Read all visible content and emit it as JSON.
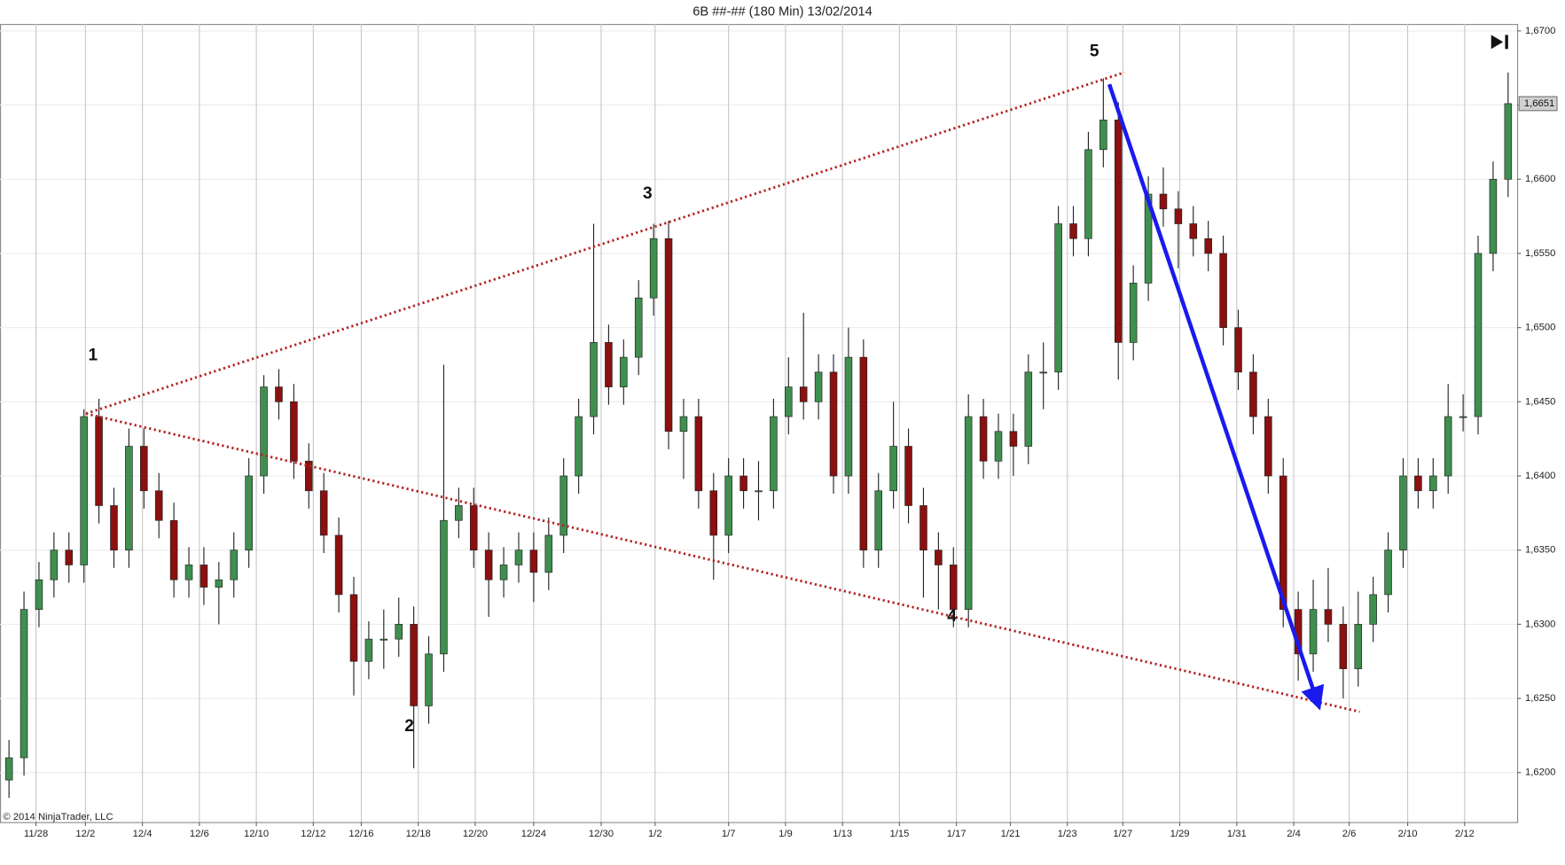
{
  "chart_data": {
    "type": "candlestick",
    "title": "6B ##-## (180 Min)  13/02/2014",
    "copyright": "© 2014 NinjaTrader, LLC",
    "up_color": "#3f8f4f",
    "down_color": "#8b1010",
    "open": [
      1.6195,
      1.621,
      1.631,
      1.633,
      1.635,
      1.634,
      1.644,
      1.638,
      1.635,
      1.642,
      1.639,
      1.637,
      1.633,
      1.634,
      1.6325,
      1.633,
      1.635,
      1.64,
      1.646,
      1.645,
      1.641,
      1.639,
      1.636,
      1.632,
      1.6275,
      1.629,
      1.629,
      1.63,
      1.6245,
      1.628,
      1.637,
      1.638,
      1.635,
      1.633,
      1.634,
      1.635,
      1.6335,
      1.636,
      1.64,
      1.644,
      1.649,
      1.646,
      1.648,
      1.652,
      1.656,
      1.643,
      1.644,
      1.639,
      1.636,
      1.64,
      1.639,
      1.639,
      1.644,
      1.646,
      1.645,
      1.647,
      1.64,
      1.648,
      1.635,
      1.639,
      1.642,
      1.638,
      1.635,
      1.634,
      1.631,
      1.644,
      1.641,
      1.643,
      1.642,
      1.647,
      1.647,
      1.657,
      1.656,
      1.662,
      1.664,
      1.649,
      1.653,
      1.659,
      1.658,
      1.657,
      1.656,
      1.655,
      1.65,
      1.647,
      1.644,
      1.64,
      1.631,
      1.628,
      1.631,
      1.63,
      1.627,
      1.63,
      1.632,
      1.635,
      1.64,
      1.639,
      1.64,
      1.644,
      1.644,
      1.655,
      1.66
    ],
    "high": [
      1.6222,
      1.6322,
      1.6342,
      1.6362,
      1.6362,
      1.6445,
      1.6452,
      1.6392,
      1.6432,
      1.6432,
      1.6402,
      1.6382,
      1.6352,
      1.6352,
      1.6342,
      1.6362,
      1.6412,
      1.6468,
      1.6472,
      1.6462,
      1.6422,
      1.6402,
      1.6372,
      1.6332,
      1.6302,
      1.631,
      1.6318,
      1.6312,
      1.6292,
      1.6475,
      1.6392,
      1.6392,
      1.6362,
      1.6352,
      1.6362,
      1.6362,
      1.6372,
      1.6412,
      1.6452,
      1.657,
      1.6502,
      1.6492,
      1.6532,
      1.657,
      1.6572,
      1.6452,
      1.6452,
      1.6402,
      1.6412,
      1.6412,
      1.641,
      1.6452,
      1.648,
      1.651,
      1.6482,
      1.6482,
      1.65,
      1.6492,
      1.6402,
      1.645,
      1.6432,
      1.6392,
      1.6362,
      1.6352,
      1.6455,
      1.6452,
      1.6442,
      1.6442,
      1.6482,
      1.649,
      1.6582,
      1.6582,
      1.6632,
      1.6668,
      1.6652,
      1.6542,
      1.6602,
      1.6608,
      1.6592,
      1.6582,
      1.6572,
      1.6562,
      1.6512,
      1.6482,
      1.6452,
      1.6412,
      1.6322,
      1.633,
      1.6338,
      1.6312,
      1.6322,
      1.6332,
      1.6362,
      1.6412,
      1.6412,
      1.6412,
      1.6462,
      1.6455,
      1.6562,
      1.6612,
      1.6672
    ],
    "low": [
      1.6183,
      1.6198,
      1.6298,
      1.6318,
      1.6328,
      1.6328,
      1.6368,
      1.6338,
      1.6338,
      1.6378,
      1.6358,
      1.6318,
      1.6318,
      1.6313,
      1.63,
      1.6318,
      1.6338,
      1.6388,
      1.6438,
      1.6398,
      1.6378,
      1.6348,
      1.6308,
      1.6252,
      1.6263,
      1.627,
      1.6278,
      1.6203,
      1.6233,
      1.6268,
      1.6358,
      1.6338,
      1.6305,
      1.6318,
      1.6328,
      1.6315,
      1.6323,
      1.6348,
      1.6388,
      1.6428,
      1.6448,
      1.6448,
      1.6468,
      1.6508,
      1.6418,
      1.6398,
      1.6378,
      1.633,
      1.6348,
      1.6378,
      1.637,
      1.6378,
      1.6428,
      1.6438,
      1.6438,
      1.6388,
      1.6388,
      1.6338,
      1.6338,
      1.6378,
      1.6368,
      1.6318,
      1.631,
      1.6298,
      1.6298,
      1.6398,
      1.6398,
      1.64,
      1.6408,
      1.6445,
      1.6458,
      1.6548,
      1.6548,
      1.6608,
      1.6465,
      1.6478,
      1.6518,
      1.6568,
      1.654,
      1.6548,
      1.6538,
      1.6488,
      1.6458,
      1.6428,
      1.6388,
      1.6298,
      1.6262,
      1.6268,
      1.6288,
      1.625,
      1.6258,
      1.6288,
      1.6308,
      1.6338,
      1.6378,
      1.6378,
      1.6388,
      1.643,
      1.6428,
      1.6538,
      1.6588
    ],
    "close": [
      1.621,
      1.631,
      1.633,
      1.635,
      1.634,
      1.644,
      1.638,
      1.635,
      1.642,
      1.639,
      1.637,
      1.633,
      1.634,
      1.6325,
      1.633,
      1.635,
      1.64,
      1.646,
      1.645,
      1.641,
      1.639,
      1.636,
      1.632,
      1.6275,
      1.629,
      1.629,
      1.63,
      1.6245,
      1.628,
      1.637,
      1.638,
      1.635,
      1.633,
      1.634,
      1.635,
      1.6335,
      1.636,
      1.64,
      1.644,
      1.649,
      1.646,
      1.648,
      1.652,
      1.656,
      1.643,
      1.644,
      1.639,
      1.636,
      1.64,
      1.639,
      1.639,
      1.644,
      1.646,
      1.645,
      1.647,
      1.64,
      1.648,
      1.635,
      1.639,
      1.642,
      1.638,
      1.635,
      1.634,
      1.631,
      1.644,
      1.641,
      1.643,
      1.642,
      1.647,
      1.647,
      1.657,
      1.656,
      1.662,
      1.664,
      1.649,
      1.653,
      1.659,
      1.658,
      1.657,
      1.656,
      1.655,
      1.65,
      1.647,
      1.644,
      1.64,
      1.631,
      1.628,
      1.631,
      1.63,
      1.627,
      1.63,
      1.632,
      1.635,
      1.64,
      1.639,
      1.64,
      1.644,
      1.644,
      1.655,
      1.66,
      1.6651
    ],
    "xlim": [
      -0.6,
      100.6
    ],
    "xticks": [
      {
        "value": 1.8,
        "label": "11/28"
      },
      {
        "value": 5.1,
        "label": "12/2"
      },
      {
        "value": 8.9,
        "label": "12/4"
      },
      {
        "value": 12.7,
        "label": "12/6"
      },
      {
        "value": 16.5,
        "label": "12/10"
      },
      {
        "value": 20.3,
        "label": "12/12"
      },
      {
        "value": 23.5,
        "label": "12/16"
      },
      {
        "value": 27.3,
        "label": "12/18"
      },
      {
        "value": 31.1,
        "label": "12/20"
      },
      {
        "value": 35,
        "label": "12/24"
      },
      {
        "value": 39.5,
        "label": "12/30"
      },
      {
        "value": 43.1,
        "label": "1/2"
      },
      {
        "value": 48,
        "label": "1/7"
      },
      {
        "value": 51.8,
        "label": "1/9"
      },
      {
        "value": 55.6,
        "label": "1/13"
      },
      {
        "value": 59.4,
        "label": "1/15"
      },
      {
        "value": 63.2,
        "label": "1/17"
      },
      {
        "value": 66.8,
        "label": "1/21"
      },
      {
        "value": 70.6,
        "label": "1/23"
      },
      {
        "value": 74.3,
        "label": "1/27"
      },
      {
        "value": 78.1,
        "label": "1/29"
      },
      {
        "value": 81.9,
        "label": "1/31"
      },
      {
        "value": 85.7,
        "label": "2/4"
      },
      {
        "value": 89.4,
        "label": "2/6"
      },
      {
        "value": 93.3,
        "label": "2/10"
      },
      {
        "value": 97.1,
        "label": "2/12"
      }
    ],
    "ylim": [
      1.6168,
      1.6702
    ],
    "yticks": [
      {
        "value": 1.62,
        "label": "1,6200"
      },
      {
        "value": 1.625,
        "label": "1,6250"
      },
      {
        "value": 1.63,
        "label": "1,6300"
      },
      {
        "value": 1.635,
        "label": "1,6350"
      },
      {
        "value": 1.64,
        "label": "1,6400"
      },
      {
        "value": 1.645,
        "label": "1,6450"
      },
      {
        "value": 1.65,
        "label": "1,6500"
      },
      {
        "value": 1.655,
        "label": "1,6550"
      },
      {
        "value": 1.66,
        "label": "1,6600"
      },
      {
        "value": 1.665,
        "label": "1,6650"
      },
      {
        "value": 1.67,
        "label": "1,6700"
      }
    ],
    "grid": true,
    "last_price": {
      "value": 1.6651,
      "label": "1,6651"
    },
    "annotations": {
      "lines": [
        {
          "x": [
            5.13,
            74.4
          ],
          "y": [
            1.6442,
            1.6672
          ],
          "color": "#b22222",
          "style": "dotted"
        },
        {
          "x": [
            5.13,
            90.1
          ],
          "y": [
            1.6442,
            1.6241
          ],
          "color": "#b22222",
          "style": "dotted"
        },
        {
          "x": [
            73.4,
            87.3
          ],
          "y": [
            1.6664,
            1.6247
          ],
          "color": "#1a1aee",
          "style": "arrow"
        }
      ],
      "labels": [
        {
          "text": "1",
          "x": 5.6,
          "y": 1.6481
        },
        {
          "text": "2",
          "x": 26.7,
          "y": 1.6231
        },
        {
          "text": "3",
          "x": 42.6,
          "y": 1.659
        },
        {
          "text": "4",
          "x": 62.9,
          "y": 1.6305
        },
        {
          "text": "5",
          "x": 72.4,
          "y": 1.6686
        }
      ]
    }
  }
}
